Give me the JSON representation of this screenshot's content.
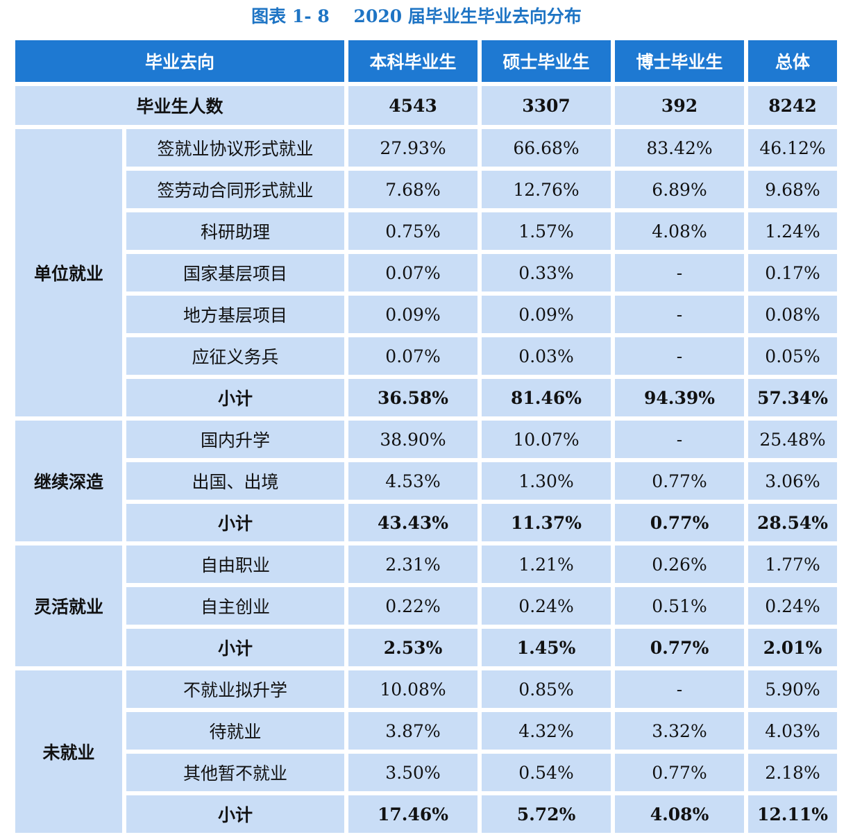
{
  "title": "图表 1- 8    2020 届毕业生毕业去向分布",
  "chart_data": {
    "type": "table",
    "columns": [
      "毕业去向",
      "本科毕业生",
      "硕士毕业生",
      "博士毕业生",
      "总体"
    ],
    "total_row": {
      "label": "毕业生人数",
      "values": [
        "4543",
        "3307",
        "392",
        "8242"
      ]
    },
    "groups": [
      {
        "name": "单位就业",
        "rows": [
          {
            "label": "签就业协议形式就业",
            "values": [
              "27.93%",
              "66.68%",
              "83.42%",
              "46.12%"
            ]
          },
          {
            "label": "签劳动合同形式就业",
            "values": [
              "7.68%",
              "12.76%",
              "6.89%",
              "9.68%"
            ]
          },
          {
            "label": "科研助理",
            "values": [
              "0.75%",
              "1.57%",
              "4.08%",
              "1.24%"
            ]
          },
          {
            "label": "国家基层项目",
            "values": [
              "0.07%",
              "0.33%",
              "-",
              "0.17%"
            ]
          },
          {
            "label": "地方基层项目",
            "values": [
              "0.09%",
              "0.09%",
              "-",
              "0.08%"
            ]
          },
          {
            "label": "应征义务兵",
            "values": [
              "0.07%",
              "0.03%",
              "-",
              "0.05%"
            ]
          }
        ],
        "subtotal": {
          "label": "小计",
          "values": [
            "36.58%",
            "81.46%",
            "94.39%",
            "57.34%"
          ]
        }
      },
      {
        "name": "继续深造",
        "rows": [
          {
            "label": "国内升学",
            "values": [
              "38.90%",
              "10.07%",
              "-",
              "25.48%"
            ]
          },
          {
            "label": "出国、出境",
            "values": [
              "4.53%",
              "1.30%",
              "0.77%",
              "3.06%"
            ]
          }
        ],
        "subtotal": {
          "label": "小计",
          "values": [
            "43.43%",
            "11.37%",
            "0.77%",
            "28.54%"
          ]
        }
      },
      {
        "name": "灵活就业",
        "rows": [
          {
            "label": "自由职业",
            "values": [
              "2.31%",
              "1.21%",
              "0.26%",
              "1.77%"
            ]
          },
          {
            "label": "自主创业",
            "values": [
              "0.22%",
              "0.24%",
              "0.51%",
              "0.24%"
            ]
          }
        ],
        "subtotal": {
          "label": "小计",
          "values": [
            "2.53%",
            "1.45%",
            "0.77%",
            "2.01%"
          ]
        }
      },
      {
        "name": "未就业",
        "rows": [
          {
            "label": "不就业拟升学",
            "values": [
              "10.08%",
              "0.85%",
              "-",
              "5.90%"
            ]
          },
          {
            "label": "待就业",
            "values": [
              "3.87%",
              "4.32%",
              "3.32%",
              "4.03%"
            ]
          },
          {
            "label": "其他暂不就业",
            "values": [
              "3.50%",
              "0.54%",
              "0.77%",
              "2.18%"
            ]
          }
        ],
        "subtotal": {
          "label": "小计",
          "values": [
            "17.46%",
            "5.72%",
            "4.08%",
            "12.11%"
          ]
        }
      }
    ]
  },
  "colors": {
    "title": "#1e74c4",
    "header_bg": "#1e79d2",
    "cell_bg": "#c9ddf6",
    "text": "#111111"
  }
}
